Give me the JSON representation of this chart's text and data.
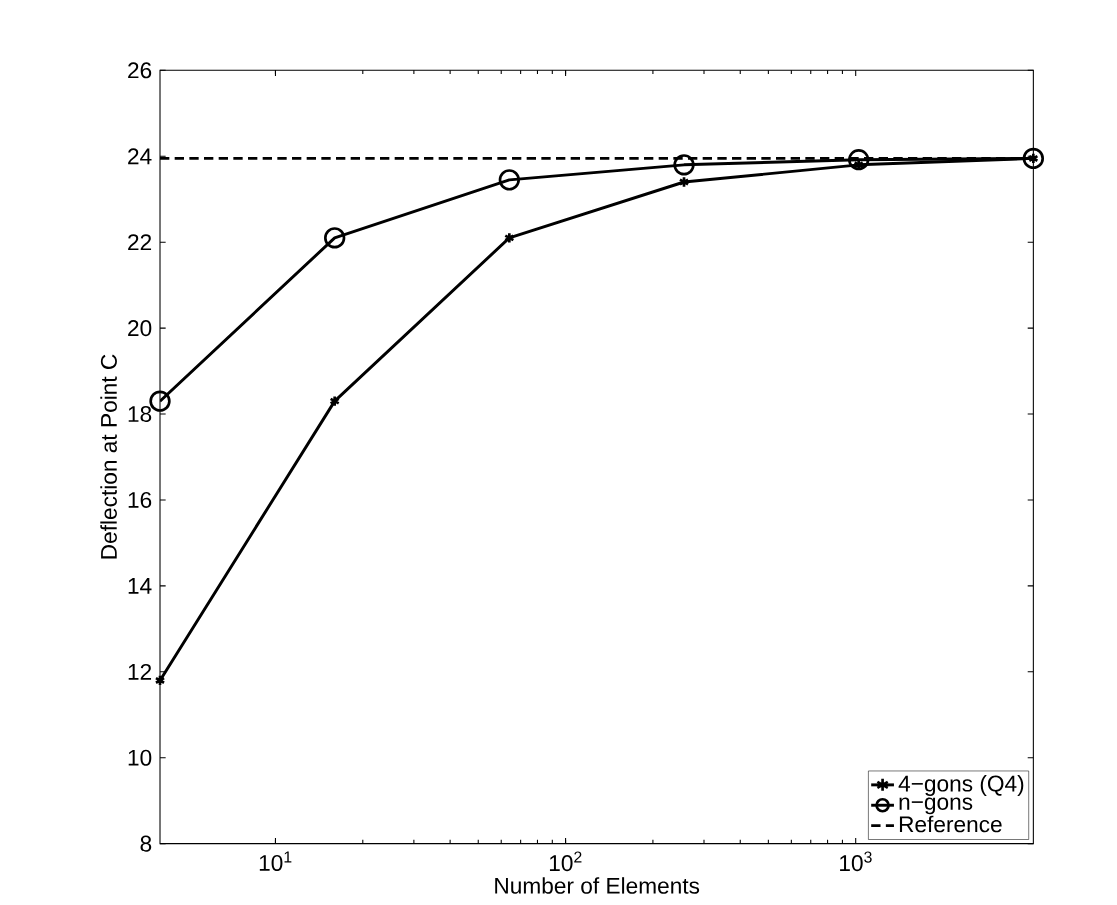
{
  "chart_data": {
    "type": "line",
    "xlabel": "Number of Elements",
    "ylabel": "Deflection at Point C",
    "log": "x",
    "grid": false,
    "legend": "bottom right",
    "xlim": [
      4,
      4096
    ],
    "ylim": [
      8,
      26
    ],
    "xticks": [
      {
        "value": 10,
        "label": "10$^{1}$"
      },
      {
        "value": 100,
        "label": "10$^{2}$"
      },
      {
        "value": 1000,
        "label": "10$^{3}$"
      }
    ],
    "yticks": [
      8,
      10,
      12,
      14,
      16,
      18,
      20,
      22,
      24,
      26
    ],
    "x": [
      4,
      16,
      64,
      256,
      1024,
      4096
    ],
    "series": [
      {
        "name": "4−gons (Q4)",
        "color": "#000000",
        "marker": "cross",
        "line_style": "solid",
        "values": [
          11.8,
          18.3,
          22.1,
          23.4,
          23.8,
          23.95
        ]
      },
      {
        "name": "n−gons",
        "color": "#000000",
        "marker": "circle",
        "line_style": "solid",
        "values": [
          18.3,
          22.1,
          23.45,
          23.8,
          23.92,
          23.95
        ]
      },
      {
        "name": "Reference",
        "color": "#000000",
        "marker": "none",
        "line_style": "dashed",
        "x": [
          4,
          4096
        ],
        "values": [
          23.95,
          23.95
        ]
      }
    ]
  }
}
